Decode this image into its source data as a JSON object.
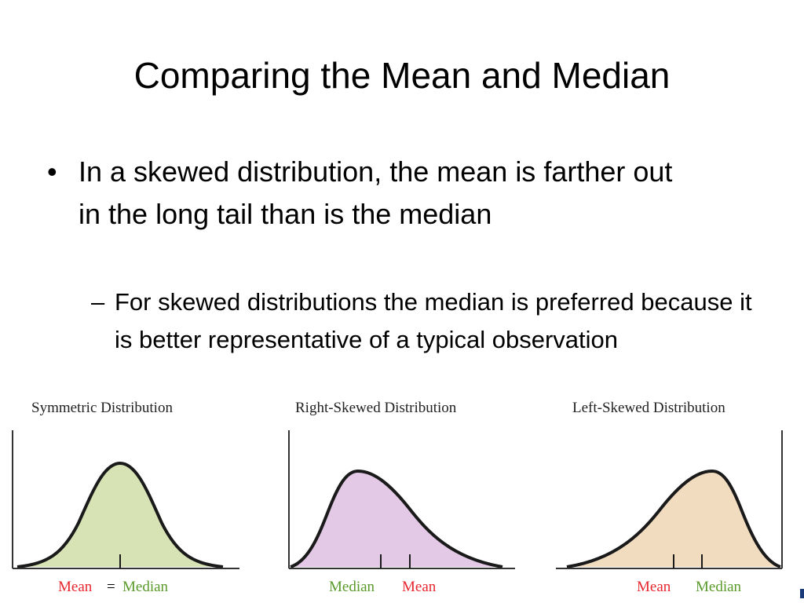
{
  "slide": {
    "title": "Comparing the Mean and Median",
    "bullet_marker": "•",
    "bullet": "In a skewed distribution, the mean is farther out in the long tail than is the median",
    "subbullet_marker": "–",
    "subbullet": "For skewed distributions the median is preferred because it is better representative of a typical observation"
  },
  "panels": [
    {
      "title": "Symmetric Distribution",
      "fill": "#d7e3b5",
      "shape": "symmetric",
      "labels": {
        "first": "Mean",
        "separator": "=",
        "second": "Median"
      }
    },
    {
      "title": "Right-Skewed Distribution",
      "fill": "#e3c9e6",
      "shape": "right-skewed",
      "labels": {
        "first": "Median",
        "second": "Mean"
      }
    },
    {
      "title": "Left-Skewed Distribution",
      "fill": "#f2dcc0",
      "shape": "left-skewed",
      "labels": {
        "first": "Mean",
        "second": "Median"
      }
    }
  ],
  "colors": {
    "mean_label": "#e8262e",
    "median_label": "#5a9a2a",
    "curve": "#1a1a1a"
  }
}
